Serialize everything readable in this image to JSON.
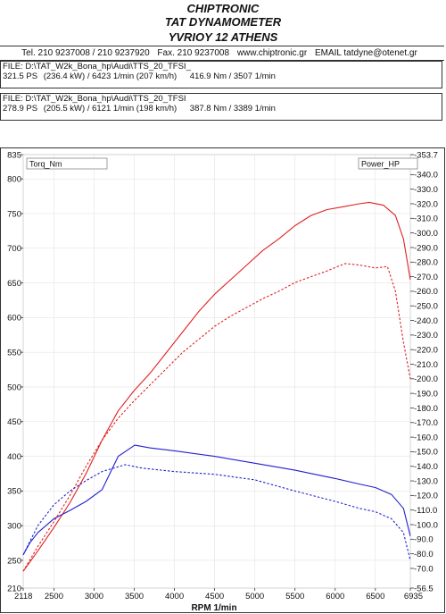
{
  "header": {
    "line1": "CHIPTRONIC",
    "line2": "TAT DYNAMOMETER",
    "line3": "YVRIOY 12 ATHENS",
    "tel": "Tel. 210 9237008 / 210 9237920",
    "fax": "Fax. 210 9237008",
    "web": "www.chiptronic.gr",
    "email": "EMAIL tatdyne@otenet.gr"
  },
  "files": [
    {
      "file": "FILE: D:\\TAT_W2k_Bona_hp\\Audi\\TTS_20_TFSI_",
      "power": "321.5 PS",
      "details": "(236.4 kW) / 6423 1/min (207 km/h)",
      "torque": "416.9 Nm / 3507 1/min"
    },
    {
      "file": "FILE: D:\\TAT_W2k_Bona_hp\\Audi\\TTS_20_TFSI",
      "power": "278.9 PS",
      "details": "(205.5 kW) / 6121 1/min (198 km/h)",
      "torque": "387.8 Nm / 3389 1/min"
    }
  ],
  "chart_data": {
    "type": "line",
    "xlabel": "RPM  1/min",
    "xlim": [
      2118,
      6935
    ],
    "x_ticks": [
      "2118",
      "2500",
      "3000",
      "3500",
      "4000",
      "4500",
      "5000",
      "5500",
      "6000",
      "6500",
      "6935"
    ],
    "left_axis": {
      "label": "Torq_Nm",
      "range": [
        210,
        835
      ],
      "ticks": [
        "835",
        "800",
        "750",
        "700",
        "650",
        "600",
        "550",
        "500",
        "450",
        "400",
        "350",
        "300",
        "250",
        "210"
      ]
    },
    "right_axis": {
      "label": "Power_HP",
      "range": [
        56.5,
        353.7
      ],
      "ticks": [
        "353.7",
        "340.0",
        "330.0",
        "320.0",
        "310.0",
        "300.0",
        "290.0",
        "280.0",
        "270.0",
        "260.0",
        "250.0",
        "240.0",
        "230.0",
        "220.0",
        "210.0",
        "200.0",
        "190.0",
        "180.0",
        "170.0",
        "160.0",
        "150.0",
        "140.0",
        "130.0",
        "120.0",
        "110.0",
        "100.0",
        "90.0",
        "80.0",
        "70.0",
        "56.5"
      ]
    },
    "grid": true,
    "series": [
      {
        "color": "#e02020",
        "dash": "solid",
        "axis": "right",
        "x": [
          2118,
          2300,
          2500,
          2700,
          2900,
          3100,
          3300,
          3500,
          3700,
          3900,
          4100,
          4300,
          4500,
          4700,
          4900,
          5100,
          5300,
          5500,
          5700,
          5900,
          6100,
          6300,
          6423,
          6600,
          6750,
          6850,
          6935
        ],
        "y": [
          68,
          82,
          98,
          115,
          135,
          158,
          178,
          192,
          204,
          218,
          232,
          246,
          258,
          268,
          278,
          288,
          296,
          305,
          312,
          316,
          318,
          320,
          321,
          319,
          312,
          296,
          268
        ]
      },
      {
        "color": "#2020d0",
        "dash": "solid",
        "axis": "left",
        "x": [
          2118,
          2200,
          2300,
          2500,
          2700,
          2900,
          3100,
          3300,
          3507,
          3700,
          4000,
          4500,
          5000,
          5500,
          6000,
          6300,
          6500,
          6700,
          6850,
          6935
        ],
        "y": [
          258,
          275,
          290,
          310,
          322,
          335,
          352,
          400,
          416,
          412,
          408,
          400,
          390,
          380,
          368,
          360,
          355,
          345,
          325,
          285
        ]
      },
      {
        "color": "#e02020",
        "dash": "dashed",
        "axis": "right",
        "x": [
          2118,
          2300,
          2500,
          2700,
          2900,
          3100,
          3300,
          3500,
          3700,
          3900,
          4100,
          4300,
          4500,
          4700,
          4900,
          5100,
          5300,
          5500,
          5700,
          5900,
          6121,
          6300,
          6500,
          6650,
          6750,
          6850,
          6935
        ],
        "y": [
          68,
          85,
          102,
          120,
          140,
          158,
          173,
          185,
          196,
          207,
          218,
          227,
          236,
          243,
          249,
          255,
          260,
          266,
          270,
          274,
          279,
          278,
          276,
          277,
          260,
          225,
          200
        ]
      },
      {
        "color": "#2020d0",
        "dash": "dashed",
        "axis": "left",
        "x": [
          2118,
          2300,
          2500,
          2700,
          2900,
          3100,
          3389,
          3600,
          4000,
          4500,
          5000,
          5500,
          6000,
          6300,
          6500,
          6700,
          6850,
          6935
        ],
        "y": [
          258,
          300,
          330,
          350,
          365,
          378,
          388,
          383,
          378,
          374,
          366,
          350,
          335,
          325,
          320,
          310,
          290,
          250
        ]
      }
    ]
  }
}
